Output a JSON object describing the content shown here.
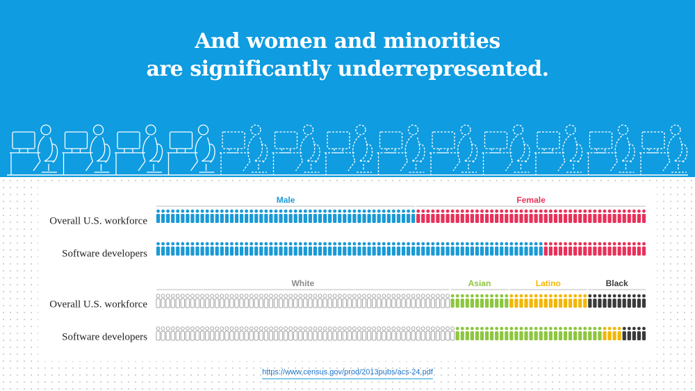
{
  "header": {
    "title": [
      "And women and minorities",
      "are significantly underrepresented."
    ]
  },
  "chart_data": [
    {
      "type": "pictogram",
      "categories": [
        "Overall U.S. workforce",
        "Software developers"
      ],
      "series": [
        {
          "name": "Male",
          "color": "#1a9ad6",
          "values": [
            53,
            79
          ]
        },
        {
          "name": "Female",
          "color": "#e8315a",
          "values": [
            47,
            21
          ]
        }
      ]
    },
    {
      "type": "pictogram",
      "categories": [
        "Overall U.S. workforce",
        "Software developers"
      ],
      "series": [
        {
          "name": "White",
          "color": "#8a8a8a",
          "values": [
            60,
            61
          ]
        },
        {
          "name": "Asian",
          "color": "#8dc63f",
          "values": [
            12,
            30
          ]
        },
        {
          "name": "Latino",
          "color": "#f2b705",
          "values": [
            16,
            4
          ]
        },
        {
          "name": "Black",
          "color": "#3a3a3a",
          "values": [
            12,
            5
          ]
        }
      ]
    }
  ],
  "source": "https://www.census.gov/prod/2013pubs/acs-24.pdf"
}
